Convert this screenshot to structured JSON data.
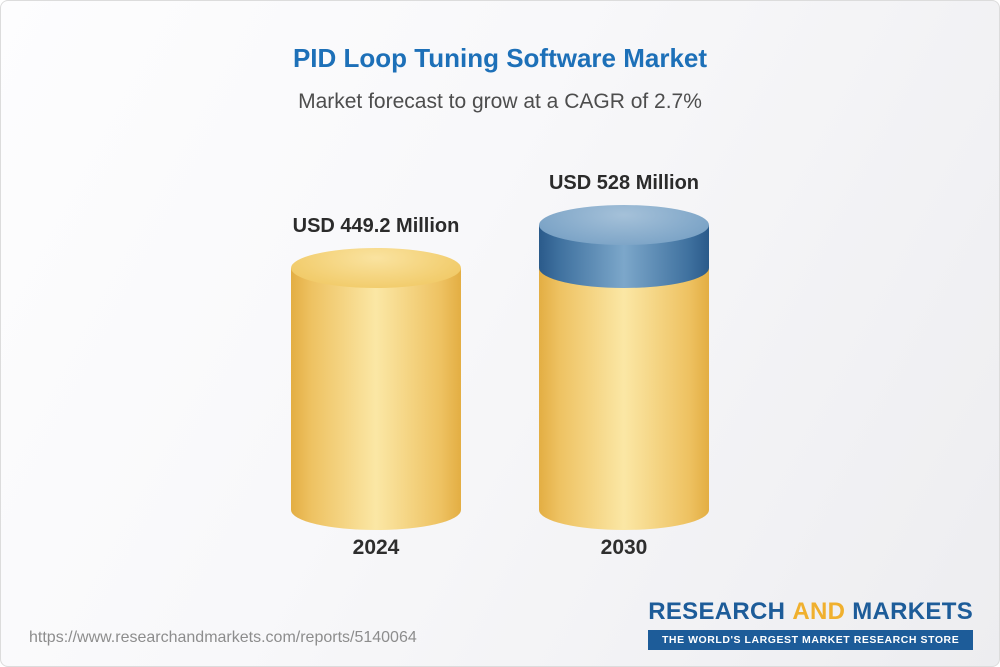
{
  "chart_data": {
    "type": "bar",
    "subtype": "cylinder",
    "title": "PID Loop Tuning Software Market",
    "subtitle": "Market forecast to grow at a CAGR of 2.7%",
    "categories": [
      "2024",
      "2030"
    ],
    "values": [
      449.2,
      528
    ],
    "value_labels": [
      "USD 449.2 Million",
      "USD 528 Million"
    ],
    "unit": "USD Million",
    "cagr_percent": 2.7,
    "ylim": [
      0,
      528
    ],
    "legend": false,
    "grid": false,
    "colors": {
      "base": "#F3CD6F",
      "growth": "#4C7FAC",
      "title": "#1D70B8"
    }
  },
  "footer": {
    "url": "https://www.researchandmarkets.com/reports/5140064",
    "logo": {
      "part1": "RESEARCH",
      "part2": "AND",
      "part3": "MARKETS",
      "tagline": "THE WORLD'S LARGEST MARKET RESEARCH STORE"
    }
  }
}
